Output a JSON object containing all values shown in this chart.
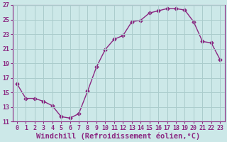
{
  "x": [
    0,
    1,
    2,
    3,
    4,
    5,
    6,
    7,
    8,
    9,
    10,
    11,
    12,
    13,
    14,
    15,
    16,
    17,
    18,
    19,
    20,
    21,
    22,
    23
  ],
  "y": [
    16.2,
    14.2,
    14.2,
    13.8,
    13.2,
    11.7,
    11.5,
    12.1,
    15.2,
    18.5,
    20.9,
    22.3,
    22.8,
    24.7,
    24.9,
    25.9,
    26.2,
    26.5,
    26.5,
    26.3,
    24.7,
    22.0,
    21.8,
    19.5
  ],
  "line_color": "#8b2882",
  "marker": "D",
  "marker_size": 2.5,
  "bg_color": "#cce8e8",
  "grid_color": "#aacccc",
  "xlabel": "Windchill (Refroidissement éolien,°C)",
  "ylim": [
    11,
    27
  ],
  "yticks": [
    11,
    13,
    15,
    17,
    19,
    21,
    23,
    25,
    27
  ],
  "xlim": [
    -0.5,
    23.5
  ],
  "xticks": [
    0,
    1,
    2,
    3,
    4,
    5,
    6,
    7,
    8,
    9,
    10,
    11,
    12,
    13,
    14,
    15,
    16,
    17,
    18,
    19,
    20,
    21,
    22,
    23
  ],
  "font_color": "#8b2882",
  "tick_fontsize": 6,
  "label_fontsize": 7.5
}
